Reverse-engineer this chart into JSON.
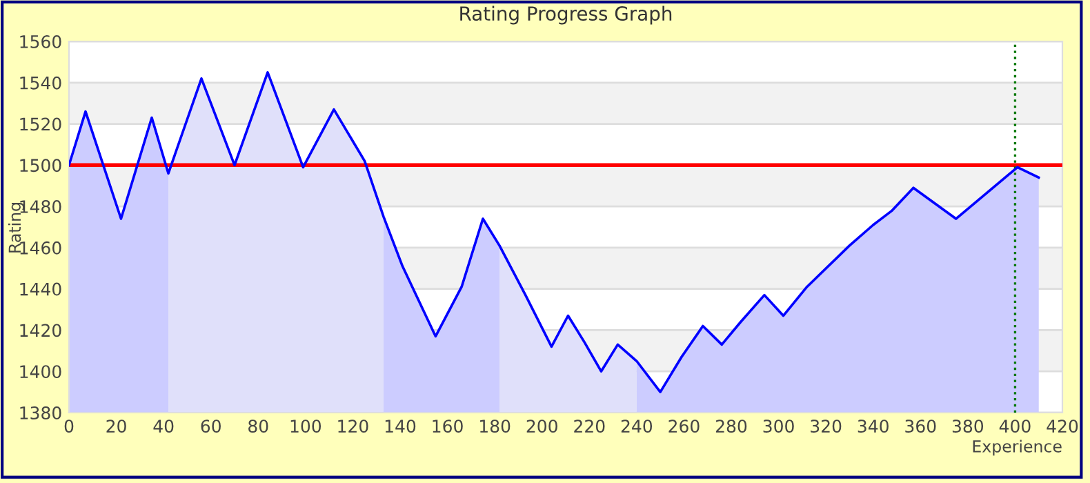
{
  "chart_data": {
    "type": "line",
    "title": "Rating Progress Graph",
    "xlabel": "Experience",
    "ylabel": "Rating",
    "xlim": [
      0,
      420
    ],
    "xticks": [
      0,
      20,
      40,
      60,
      80,
      100,
      120,
      140,
      160,
      180,
      200,
      220,
      240,
      260,
      280,
      300,
      320,
      340,
      360,
      380,
      400,
      420
    ],
    "ylim": [
      1380,
      1560
    ],
    "yticks": [
      1380,
      1400,
      1420,
      1440,
      1460,
      1480,
      1500,
      1520,
      1540,
      1560
    ],
    "grid": "y",
    "marker": "none",
    "line_style": "solid",
    "series": [
      {
        "type": "area",
        "color": "#ccccff",
        "x": [
          0,
          7,
          22,
          35,
          42
        ],
        "values": [
          1500,
          1526,
          1474,
          1523,
          1496
        ]
      },
      {
        "type": "area",
        "color": "#e0e0fa",
        "x": [
          42,
          56,
          70,
          84,
          99,
          112,
          125,
          133
        ],
        "values": [
          1496,
          1542,
          1500,
          1545,
          1499,
          1527,
          1502,
          1475
        ]
      },
      {
        "type": "area",
        "color": "#ccccff",
        "x": [
          133,
          141,
          155,
          166,
          175,
          182
        ],
        "values": [
          1475,
          1451,
          1417,
          1441,
          1474,
          1461
        ]
      },
      {
        "type": "area",
        "color": "#e0e0fa",
        "x": [
          182,
          193,
          204,
          211,
          218,
          225,
          232,
          240
        ],
        "values": [
          1461,
          1437,
          1412,
          1427,
          1414,
          1400,
          1413,
          1405
        ]
      },
      {
        "type": "area",
        "color": "#ccccff",
        "x": [
          240,
          250,
          259,
          268,
          276,
          284,
          294,
          302,
          312,
          330,
          340,
          348,
          357,
          375,
          401,
          410
        ],
        "values": [
          1405,
          1390,
          1407,
          1422,
          1413,
          1424,
          1437,
          1427,
          1441,
          1461,
          1471,
          1478,
          1489,
          1474,
          1499,
          1494
        ]
      },
      {
        "color": "#0000ff",
        "x": [
          0,
          7,
          22,
          35,
          42,
          56,
          70,
          84,
          99,
          112,
          125,
          133,
          141,
          155,
          166,
          175,
          182,
          193,
          204,
          211,
          218,
          225,
          232,
          240,
          250,
          259,
          268,
          276,
          284,
          294,
          302,
          312,
          330,
          340,
          348,
          357,
          375,
          401,
          410
        ],
        "values": [
          1500,
          1526,
          1474,
          1523,
          1496,
          1542,
          1500,
          1545,
          1499,
          1527,
          1502,
          1475,
          1451,
          1417,
          1441,
          1474,
          1461,
          1437,
          1412,
          1427,
          1414,
          1400,
          1413,
          1405,
          1390,
          1407,
          1422,
          1413,
          1424,
          1437,
          1427,
          1441,
          1461,
          1471,
          1478,
          1489,
          1474,
          1499,
          1494
        ]
      }
    ],
    "ref_lines": [
      {
        "axis": "y",
        "value": 1500,
        "color": "#ff0000",
        "line_style": "solid"
      },
      {
        "axis": "x",
        "value": 400,
        "color": "#007700",
        "line_style": "dotted"
      }
    ]
  }
}
